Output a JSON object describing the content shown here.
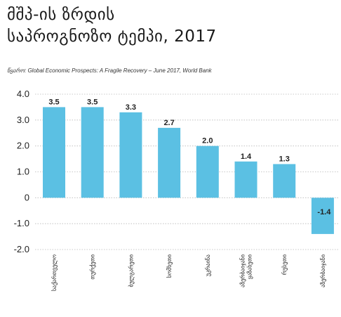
{
  "title": {
    "line1": "მშპ-ის ზრდის",
    "line2": "საპროგნოზო ტემპი, 2017"
  },
  "source": "წყარო: Global Economic Prospects: A Fragile Recovery – June 2017, World Bank",
  "chart_data": {
    "type": "bar",
    "title": "მშპ-ის ზრდის საპროგნოზო ტემპი, 2017",
    "categories": [
      "საქართველო",
      "თურქეთი",
      "ბულგარეთი",
      "სომხეთი",
      "უკრაინა",
      "აზერბაიჯანი\nყაზახეთი",
      "რუსეთი",
      "აზერბაიჯანი"
    ],
    "values": [
      3.5,
      3.5,
      3.3,
      2.7,
      2.0,
      1.4,
      1.3,
      -1.4
    ],
    "value_labels": [
      "3.5",
      "3.5",
      "3.3",
      "2.7",
      "2.0",
      "1.4",
      "1.3",
      "-1.4"
    ],
    "yticks": [
      "4.0",
      "3.0",
      "2.0",
      "1.0",
      "0",
      "-1.0",
      "-2.0"
    ],
    "ytick_values": [
      4,
      3,
      2,
      1,
      0,
      -1,
      -2
    ],
    "ylim": [
      -2.0,
      4.0
    ],
    "grid": true,
    "bar_color": "#5bc0e3",
    "grid_color": "#b8b8b8",
    "xlabel": "",
    "ylabel": ""
  }
}
